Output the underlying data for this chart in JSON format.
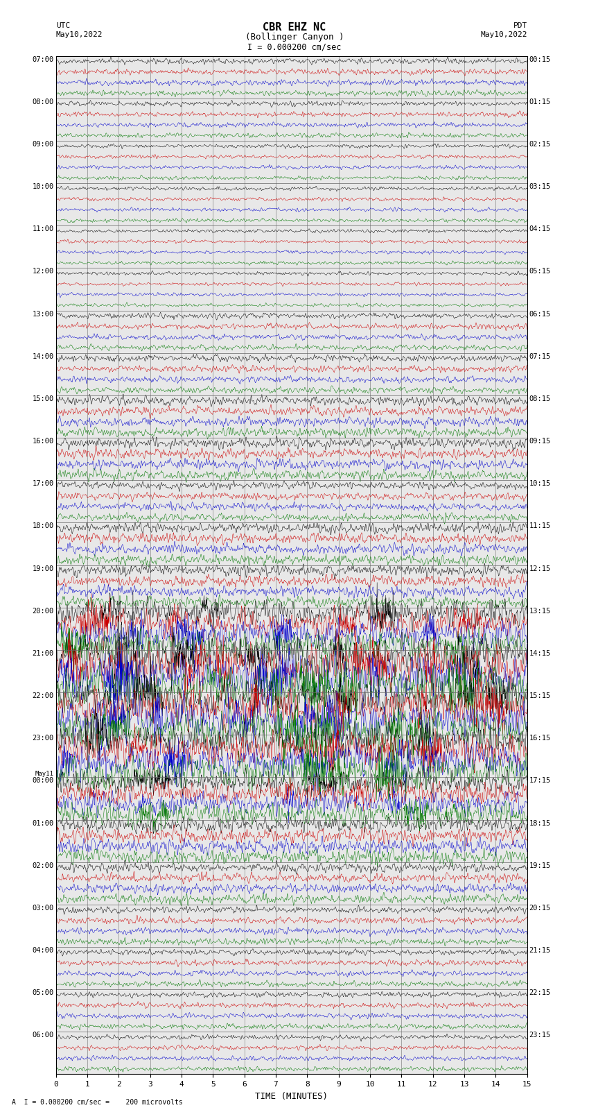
{
  "title_line1": "CBR EHZ NC",
  "title_line2": "(Bollinger Canyon )",
  "scale_text": "I = 0.000200 cm/sec",
  "left_label_top": "UTC",
  "left_label_date": "May10,2022",
  "right_label_top": "PDT",
  "right_label_date": "May10,2022",
  "xlabel": "TIME (MINUTES)",
  "footer_text": "A  I = 0.000200 cm/sec =    200 microvolts",
  "xmin": 0,
  "xmax": 15,
  "background_color": "#e8e8e8",
  "grid_color": "#999999",
  "trace_colors": [
    "#000000",
    "#cc0000",
    "#0000cc",
    "#007700"
  ],
  "hour_labels_utc": [
    "07:00",
    "08:00",
    "09:00",
    "10:00",
    "11:00",
    "12:00",
    "13:00",
    "14:00",
    "15:00",
    "16:00",
    "17:00",
    "18:00",
    "19:00",
    "20:00",
    "21:00",
    "22:00",
    "23:00",
    "00:00",
    "01:00",
    "02:00",
    "03:00",
    "04:00",
    "05:00",
    "06:00"
  ],
  "hour_labels_pdt": [
    "00:15",
    "01:15",
    "02:15",
    "03:15",
    "04:15",
    "05:15",
    "06:15",
    "07:15",
    "08:15",
    "09:15",
    "10:15",
    "11:15",
    "12:15",
    "13:15",
    "14:15",
    "15:15",
    "16:15",
    "17:15",
    "18:15",
    "19:15",
    "20:15",
    "21:15",
    "22:15",
    "23:15"
  ],
  "may11_hour_index": 17,
  "num_hours": 24,
  "traces_per_hour": 4,
  "noise_seed": 42,
  "amplitude_by_hour": [
    0.3,
    0.25,
    0.2,
    0.2,
    0.18,
    0.18,
    0.3,
    0.35,
    0.5,
    0.55,
    0.4,
    0.55,
    0.6,
    1.4,
    2.2,
    2.0,
    1.8,
    1.2,
    0.8,
    0.5,
    0.35,
    0.3,
    0.28,
    0.25
  ]
}
